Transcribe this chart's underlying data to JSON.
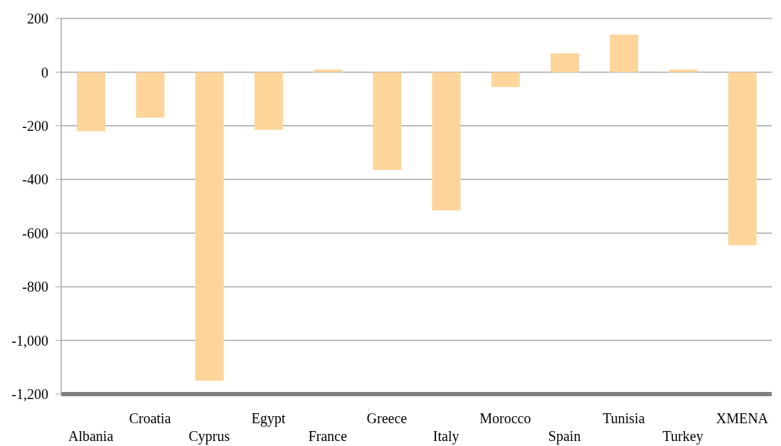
{
  "chart_data": {
    "type": "bar",
    "categories": [
      "Albania",
      "Croatia",
      "Cyprus",
      "Egypt",
      "France",
      "Greece",
      "Italy",
      "Morocco",
      "Spain",
      "Tunisia",
      "Turkey",
      "XMENA"
    ],
    "values": [
      -220,
      -170,
      -1150,
      -215,
      10,
      -365,
      -515,
      -55,
      70,
      140,
      10,
      -645
    ],
    "color": "#fdd59b",
    "ylim": [
      -1200,
      200
    ],
    "yticks": [
      200,
      0,
      -200,
      -400,
      -600,
      -800,
      {
        "value": -1000,
        "label": "-1,000"
      },
      {
        "value": -1200,
        "label": "-1,200"
      }
    ],
    "grid": "y"
  }
}
